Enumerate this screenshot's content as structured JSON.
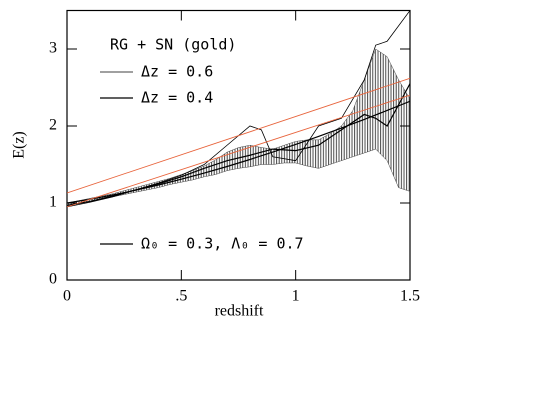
{
  "chart_data": {
    "type": "line",
    "xlabel": "redshift",
    "ylabel": "E(z)",
    "xlim": [
      0,
      1.5
    ],
    "ylim": [
      0,
      3.5
    ],
    "xticks": [
      0,
      {
        "value": 0.5,
        "label": ".5"
      },
      1,
      1.5
    ],
    "yticks": [
      0,
      1,
      2,
      3
    ],
    "annotation": "RG + SN (gold)",
    "band": {
      "color": "#444444",
      "x": [
        0,
        0.05,
        0.1,
        0.15,
        0.2,
        0.25,
        0.3,
        0.35,
        0.4,
        0.45,
        0.5,
        0.55,
        0.6,
        0.65,
        0.7,
        0.75,
        0.8,
        0.85,
        0.9,
        0.95,
        1.0,
        1.05,
        1.1,
        1.15,
        1.2,
        1.25,
        1.3,
        1.35,
        1.4,
        1.45,
        1.5
      ],
      "lower": [
        0.96,
        0.99,
        1.02,
        1.05,
        1.08,
        1.11,
        1.14,
        1.17,
        1.2,
        1.24,
        1.27,
        1.3,
        1.34,
        1.37,
        1.42,
        1.45,
        1.47,
        1.5,
        1.5,
        1.52,
        1.52,
        1.48,
        1.45,
        1.5,
        1.55,
        1.6,
        1.65,
        1.7,
        1.55,
        1.2,
        1.15
      ],
      "upper": [
        1.0,
        1.03,
        1.06,
        1.09,
        1.12,
        1.16,
        1.2,
        1.24,
        1.28,
        1.32,
        1.37,
        1.42,
        1.48,
        1.56,
        1.66,
        1.72,
        1.75,
        1.72,
        1.7,
        1.75,
        1.8,
        1.82,
        1.82,
        1.9,
        2.0,
        2.2,
        2.6,
        3.0,
        2.9,
        2.6,
        2.35
      ]
    },
    "series": [
      {
        "name": "Δz = 0.6",
        "color": "#000000",
        "width": 0.8,
        "x": [
          0,
          0.1,
          0.2,
          0.3,
          0.4,
          0.5,
          0.6,
          0.7,
          0.8,
          0.85,
          0.9,
          1.0,
          1.1,
          1.2,
          1.3,
          1.35,
          1.4,
          1.5
        ],
        "values": [
          0.95,
          1.01,
          1.08,
          1.17,
          1.26,
          1.36,
          1.5,
          1.75,
          2.0,
          1.95,
          1.6,
          1.55,
          2.0,
          2.1,
          2.6,
          3.05,
          3.1,
          3.5
        ]
      },
      {
        "name": "Δz = 0.4",
        "color": "#000000",
        "width": 1.2,
        "x": [
          0,
          0.1,
          0.2,
          0.3,
          0.4,
          0.5,
          0.6,
          0.7,
          0.8,
          0.9,
          1.0,
          1.1,
          1.2,
          1.3,
          1.35,
          1.4,
          1.5
        ],
        "values": [
          0.97,
          1.02,
          1.09,
          1.17,
          1.25,
          1.34,
          1.45,
          1.55,
          1.62,
          1.7,
          1.68,
          1.75,
          1.95,
          2.15,
          2.1,
          2.0,
          2.55
        ]
      },
      {
        "name": "Ω₀ = 0.3, Λ₀ = 0.7",
        "color": "#000000",
        "width": 1.2,
        "x": [
          0,
          0.1,
          0.2,
          0.3,
          0.4,
          0.5,
          0.6,
          0.7,
          0.8,
          0.9,
          1.0,
          1.1,
          1.2,
          1.3,
          1.4,
          1.5
        ],
        "values": [
          1.0,
          1.048,
          1.104,
          1.166,
          1.234,
          1.309,
          1.389,
          1.474,
          1.565,
          1.661,
          1.761,
          1.865,
          1.973,
          2.086,
          2.202,
          2.321
        ]
      },
      {
        "color": "#e8643c",
        "width": 0.9,
        "x": [
          0,
          1.5
        ],
        "values": [
          1.13,
          2.62
        ]
      },
      {
        "color": "#e8643c",
        "width": 0.9,
        "x": [
          0,
          1.5
        ],
        "values": [
          0.95,
          2.4
        ]
      }
    ]
  }
}
